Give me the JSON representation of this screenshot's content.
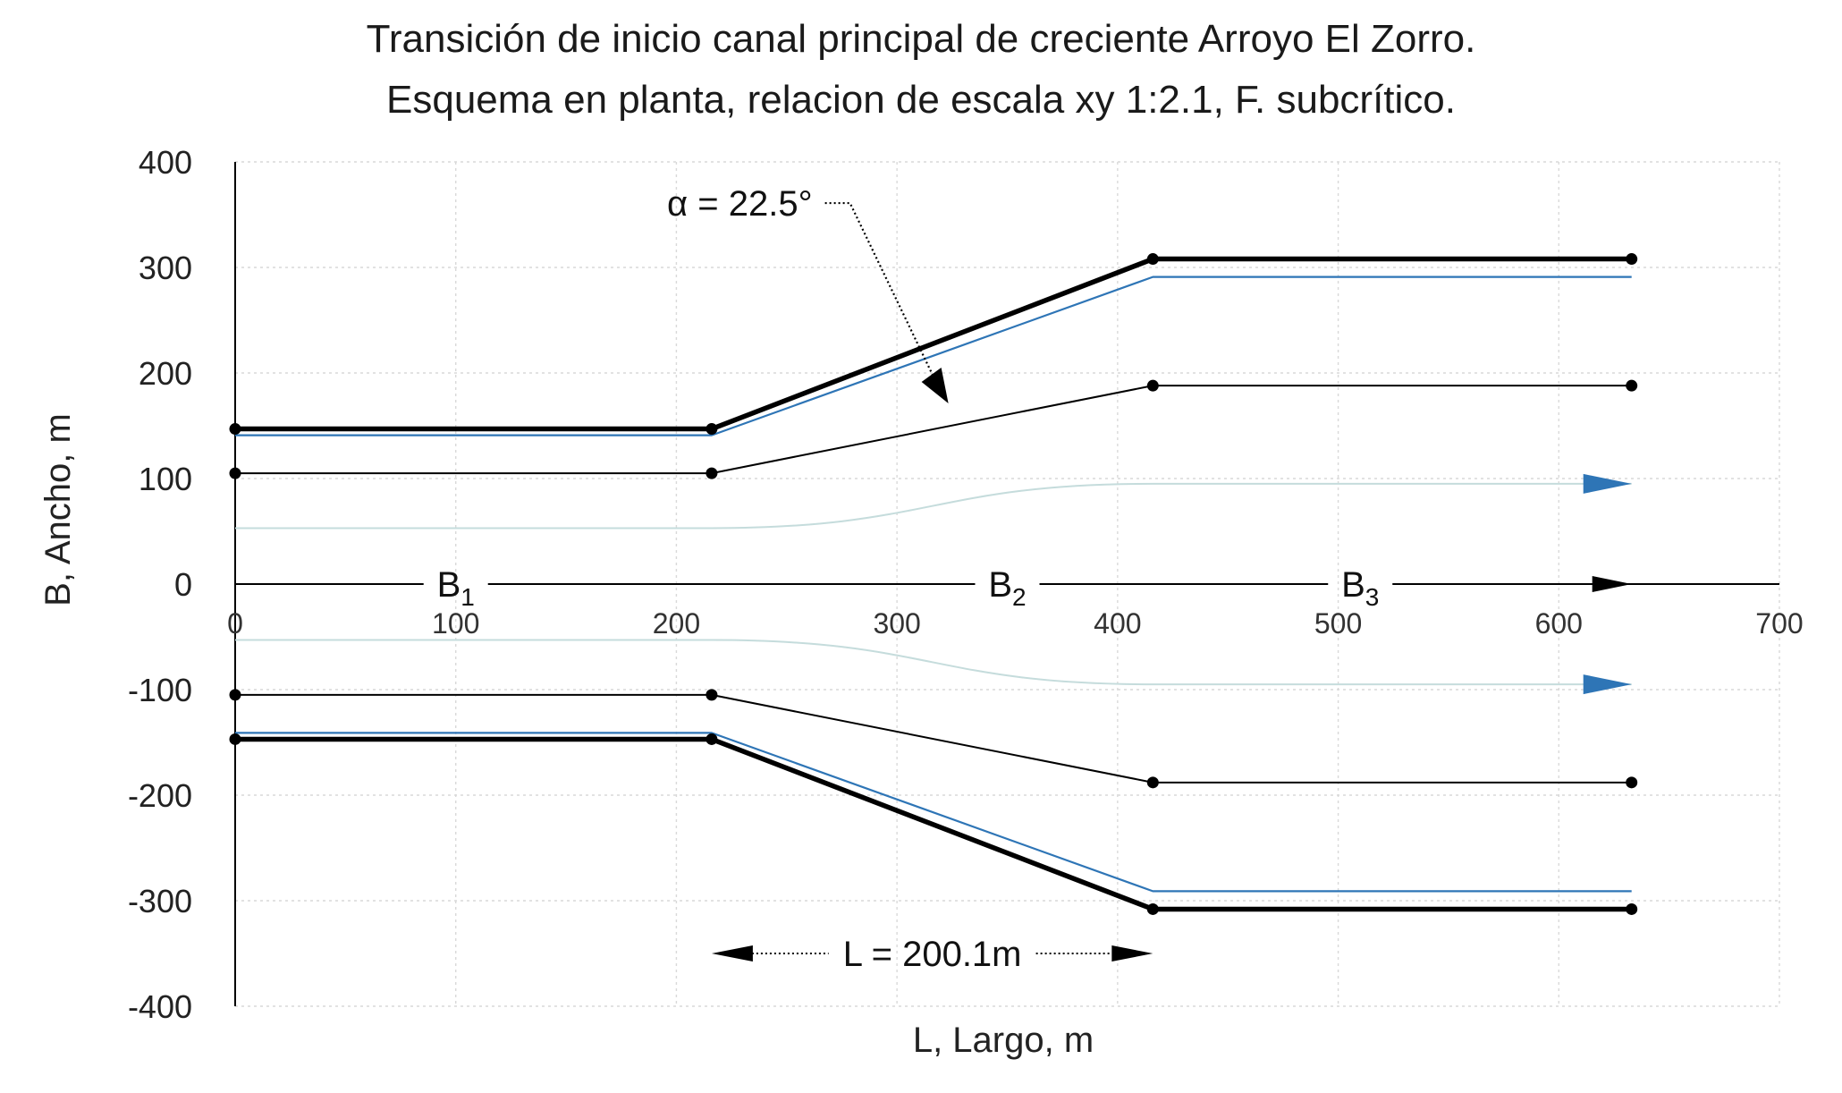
{
  "chart_data": {
    "type": "line",
    "title": "Transición de inicio canal principal de creciente Arroyo El Zorro.",
    "subtitle": "Esquema en planta, relacion de escala xy  1:2.1, F. subcrítico.",
    "xlabel": "L, Largo, m",
    "ylabel": "B, Ancho, m",
    "xlim": [
      0,
      700
    ],
    "ylim": [
      -400,
      400
    ],
    "xticks": [
      "0",
      "100",
      "200",
      "300",
      "400",
      "500",
      "600",
      "700"
    ],
    "yticks": [
      "400",
      "300",
      "200",
      "100",
      "0",
      "-100",
      "-200",
      "-300",
      "-400"
    ],
    "grid": true,
    "series": [
      {
        "id": "wall-top",
        "style": "thick",
        "color": "#000000",
        "markers": true,
        "x": [
          0,
          216,
          416,
          633
        ],
        "y": [
          147,
          147,
          308,
          308
        ]
      },
      {
        "id": "wall-bottom",
        "style": "thick",
        "color": "#000000",
        "markers": true,
        "x": [
          0,
          216,
          416,
          633
        ],
        "y": [
          -147,
          -147,
          -308,
          -308
        ]
      },
      {
        "id": "water-top",
        "style": "blue",
        "color": "#2e75b6",
        "markers": false,
        "x": [
          0,
          216,
          416,
          633
        ],
        "y": [
          141,
          141,
          291,
          291
        ]
      },
      {
        "id": "water-bottom",
        "style": "blue",
        "color": "#2e75b6",
        "markers": false,
        "x": [
          0,
          216,
          416,
          633
        ],
        "y": [
          -141,
          -141,
          -291,
          -291
        ]
      },
      {
        "id": "inner-top",
        "style": "thin",
        "color": "#000000",
        "markers": true,
        "x": [
          0,
          216,
          416,
          633
        ],
        "y": [
          105,
          105,
          188,
          188
        ]
      },
      {
        "id": "inner-bottom",
        "style": "thin",
        "color": "#000000",
        "markers": true,
        "x": [
          0,
          216,
          416,
          633
        ],
        "y": [
          -105,
          -105,
          -188,
          -188
        ]
      }
    ],
    "flowlines": [
      {
        "id": "flow-top",
        "x": [
          0,
          216,
          416,
          633
        ],
        "y": [
          53,
          53,
          95,
          95
        ]
      },
      {
        "id": "flow-bottom",
        "x": [
          0,
          216,
          416,
          633
        ],
        "y": [
          -53,
          -53,
          -95,
          -95
        ]
      }
    ],
    "centerline": {
      "x": [
        0,
        700
      ],
      "y": [
        0,
        0
      ],
      "arrow_at_x": 633
    },
    "segment_labels": [
      {
        "main": "B",
        "sub": "1",
        "x": 100
      },
      {
        "main": "B",
        "sub": "2",
        "x": 350
      },
      {
        "main": "B",
        "sub": "3",
        "x": 510
      }
    ],
    "annotations": {
      "angle": {
        "text": "α = 22.5°",
        "points_to_x": 316,
        "points_to_y": 222
      },
      "length": {
        "text": "L = 200.1m",
        "from_x": 216,
        "to_x": 416,
        "y": -350
      }
    }
  },
  "colors": {
    "accent": "#2e75b6",
    "flow": "#c5dcdc",
    "line": "#000000"
  }
}
